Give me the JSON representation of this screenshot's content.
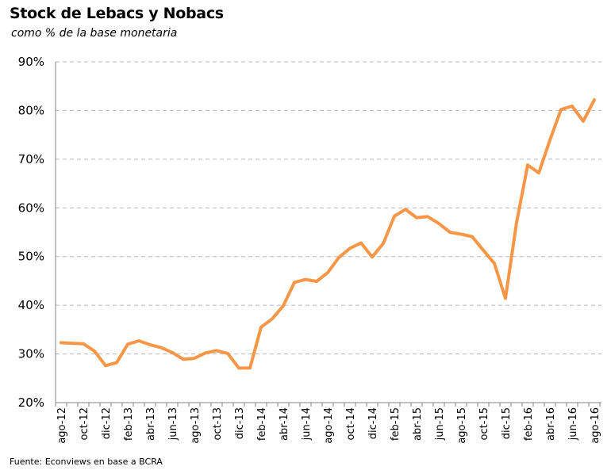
{
  "chart_data": {
    "type": "line",
    "title": "Stock de Lebacs y Nobacs",
    "subtitle": "como % de la base monetaria",
    "source": "Fuente: Econviews en base a BCRA",
    "ylim": [
      20,
      90
    ],
    "y_ticks": [
      "20%",
      "30%",
      "40%",
      "50%",
      "60%",
      "70%",
      "80%",
      "90%"
    ],
    "grid": "horizontal dashed",
    "line_color": "#F79646",
    "x_tick_labels": [
      "ago-12",
      "oct-12",
      "dic-12",
      "feb-13",
      "abr-13",
      "jun-13",
      "ago-13",
      "oct-13",
      "dic-13",
      "feb-14",
      "abr-14",
      "jun-14",
      "ago-14",
      "oct-14",
      "dic-14",
      "feb-15",
      "abr-15",
      "jun-15",
      "ago-15",
      "oct-15",
      "dic-15",
      "feb-16",
      "abr-16",
      "jun-16",
      "ago-16"
    ],
    "x": [
      "ago-12",
      "sep-12",
      "oct-12",
      "nov-12",
      "dic-12",
      "ene-13",
      "feb-13",
      "mar-13",
      "abr-13",
      "may-13",
      "jun-13",
      "jul-13",
      "ago-13",
      "sep-13",
      "oct-13",
      "nov-13",
      "dic-13",
      "ene-14",
      "feb-14",
      "mar-14",
      "abr-14",
      "may-14",
      "jun-14",
      "jul-14",
      "ago-14",
      "sep-14",
      "oct-14",
      "nov-14",
      "dic-14",
      "ene-15",
      "feb-15",
      "mar-15",
      "abr-15",
      "may-15",
      "jun-15",
      "jul-15",
      "ago-15",
      "sep-15",
      "oct-15",
      "nov-15",
      "dic-15",
      "ene-16",
      "feb-16",
      "mar-16",
      "abr-16",
      "may-16",
      "jun-16",
      "jul-16",
      "ago-16"
    ],
    "values": [
      32.3,
      32.2,
      32.1,
      30.6,
      27.6,
      28.2,
      32.0,
      32.7,
      31.9,
      31.3,
      30.3,
      28.9,
      29.1,
      30.2,
      30.7,
      30.1,
      27.1,
      27.1,
      35.5,
      37.2,
      39.9,
      44.7,
      45.3,
      44.9,
      46.7,
      49.8,
      51.7,
      52.8,
      49.9,
      52.7,
      58.3,
      59.7,
      58.0,
      58.2,
      56.8,
      55.0,
      54.6,
      54.1,
      51.3,
      48.6,
      41.4,
      57.0,
      68.8,
      67.2,
      73.9,
      80.2,
      80.9,
      77.8,
      82.2
    ]
  }
}
